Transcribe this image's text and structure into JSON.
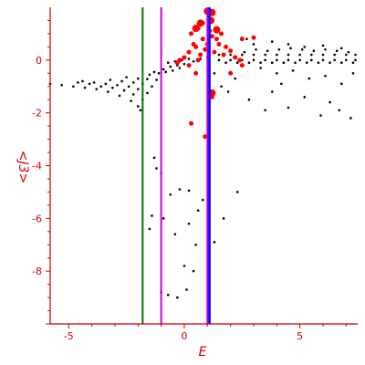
{
  "chart_data": {
    "type": "scatter",
    "title": "",
    "xlabel": "E",
    "ylabel": "<J3>",
    "xlim": [
      -5.8,
      7.5
    ],
    "ylim": [
      -10.0,
      2.0
    ],
    "x_ticks": [
      -5,
      0,
      5
    ],
    "y_ticks": [
      0,
      -2,
      -4,
      -6,
      -8
    ],
    "grid": false,
    "legend": "none",
    "colors": {
      "axes": "#cc0000",
      "black_points": "#000000",
      "red_points": "#ff0000",
      "line_green": "#007700",
      "line_magenta": "#cc00cc",
      "line_purple": "#7700ff",
      "line_blue": "#0000ff"
    },
    "vertical_lines": [
      {
        "x": -1.8,
        "color": "#007700"
      },
      {
        "x": -1.0,
        "color": "#cc00cc"
      },
      {
        "x": 1.0,
        "color": "#cc00cc"
      },
      {
        "x": 1.05,
        "color": "#7700ff"
      },
      {
        "x": 1.1,
        "color": "#0000ff"
      }
    ],
    "series": [
      {
        "color": "#000000",
        "marker_size": 1.3,
        "points": [
          [
            -5.8,
            -0.9
          ],
          [
            -5.3,
            -0.95
          ],
          [
            -4.8,
            -1.0
          ],
          [
            -4.3,
            -1.05
          ],
          [
            -3.8,
            -1.1
          ],
          [
            -3.3,
            -1.2
          ],
          [
            -2.8,
            -1.35
          ],
          [
            -2.3,
            -1.55
          ],
          [
            -2.0,
            -1.75
          ],
          [
            -1.9,
            -1.9
          ],
          [
            -4.6,
            -0.85
          ],
          [
            -4.1,
            -0.9
          ],
          [
            -3.6,
            -1.0
          ],
          [
            -3.1,
            -1.05
          ],
          [
            -2.6,
            -1.15
          ],
          [
            -2.2,
            -1.3
          ],
          [
            -1.8,
            -1.5
          ],
          [
            -4.4,
            -0.8
          ],
          [
            -3.9,
            -0.85
          ],
          [
            -3.4,
            -0.9
          ],
          [
            -2.9,
            -0.95
          ],
          [
            -2.4,
            -1.0
          ],
          [
            -2.0,
            -1.1
          ],
          [
            -1.6,
            -1.25
          ],
          [
            -3.2,
            -0.75
          ],
          [
            -2.7,
            -0.8
          ],
          [
            -2.2,
            -0.85
          ],
          [
            -1.8,
            -0.9
          ],
          [
            -1.4,
            -1.0
          ],
          [
            -2.5,
            -0.65
          ],
          [
            -2.0,
            -0.7
          ],
          [
            -1.6,
            -0.72
          ],
          [
            -1.2,
            -0.75
          ],
          [
            -1.5,
            -0.55
          ],
          [
            -1.1,
            -0.5
          ],
          [
            -0.8,
            -0.45
          ],
          [
            -0.5,
            -0.4
          ],
          [
            -0.2,
            -0.3
          ],
          [
            -1.3,
            -0.45
          ],
          [
            -0.9,
            -0.35
          ],
          [
            -0.6,
            -0.25
          ],
          [
            -0.3,
            -0.2
          ],
          [
            0.0,
            -0.15
          ],
          [
            -0.7,
            -0.1
          ],
          [
            -0.4,
            -0.05
          ],
          [
            -0.1,
            0.0
          ],
          [
            0.2,
            0.05
          ],
          [
            0.4,
            -0.05
          ],
          [
            0.7,
            0.05
          ],
          [
            1.0,
            0.1
          ],
          [
            1.5,
            0.0
          ],
          [
            2.0,
            0.0
          ],
          [
            2.5,
            0.0
          ],
          [
            3.0,
            0.0
          ],
          [
            3.5,
            0.0
          ],
          [
            4.0,
            0.0
          ],
          [
            4.5,
            0.0
          ],
          [
            5.0,
            0.0
          ],
          [
            5.5,
            0.0
          ],
          [
            6.0,
            0.0
          ],
          [
            6.5,
            0.0
          ],
          [
            7.0,
            0.0
          ],
          [
            7.4,
            0.0
          ],
          [
            1.5,
            0.2
          ],
          [
            2.0,
            0.2
          ],
          [
            2.5,
            0.2
          ],
          [
            3.0,
            0.2
          ],
          [
            3.5,
            0.2
          ],
          [
            4.0,
            0.2
          ],
          [
            4.5,
            0.2
          ],
          [
            5.0,
            0.2
          ],
          [
            5.5,
            0.2
          ],
          [
            6.0,
            0.2
          ],
          [
            6.5,
            0.2
          ],
          [
            7.0,
            0.2
          ],
          [
            7.4,
            0.2
          ],
          [
            1.8,
            -0.1
          ],
          [
            2.3,
            -0.1
          ],
          [
            2.8,
            -0.1
          ],
          [
            3.3,
            -0.1
          ],
          [
            3.8,
            -0.1
          ],
          [
            4.3,
            -0.1
          ],
          [
            4.8,
            -0.1
          ],
          [
            5.3,
            -0.1
          ],
          [
            5.8,
            -0.1
          ],
          [
            6.3,
            -0.1
          ],
          [
            6.8,
            -0.1
          ],
          [
            7.3,
            -0.1
          ],
          [
            2.6,
            0.3
          ],
          [
            3.1,
            0.4
          ],
          [
            3.6,
            0.35
          ],
          [
            4.1,
            0.4
          ],
          [
            4.6,
            0.45
          ],
          [
            5.1,
            0.4
          ],
          [
            5.6,
            0.35
          ],
          [
            6.1,
            0.4
          ],
          [
            6.6,
            0.35
          ],
          [
            7.1,
            0.3
          ],
          [
            2.7,
            0.8
          ],
          [
            3.0,
            0.6
          ],
          [
            3.8,
            0.7
          ],
          [
            4.5,
            0.6
          ],
          [
            5.2,
            0.5
          ],
          [
            6.0,
            0.55
          ],
          [
            6.8,
            0.45
          ],
          [
            3.3,
            -0.3
          ],
          [
            4.0,
            -0.5
          ],
          [
            4.7,
            -0.4
          ],
          [
            5.4,
            -0.7
          ],
          [
            6.1,
            -0.6
          ],
          [
            6.8,
            -0.9
          ],
          [
            7.3,
            -0.5
          ],
          [
            2.8,
            -1.5
          ],
          [
            3.8,
            -1.2
          ],
          [
            4.5,
            -1.8
          ],
          [
            5.2,
            -1.4
          ],
          [
            5.9,
            -2.1
          ],
          [
            6.7,
            -1.9
          ],
          [
            7.2,
            -2.2
          ],
          [
            3.5,
            -1.9
          ],
          [
            6.3,
            -1.6
          ],
          [
            4.2,
            -0.9
          ],
          [
            1.6,
            -1.0
          ],
          [
            2.2,
            -0.7
          ],
          [
            1.3,
            -0.5
          ],
          [
            1.9,
            -1.2
          ],
          [
            -1.3,
            -3.7
          ],
          [
            -1.2,
            -4.1
          ],
          [
            -1.0,
            -4.3
          ],
          [
            -0.6,
            -5.1
          ],
          [
            -0.2,
            -4.9
          ],
          [
            0.2,
            -4.95
          ],
          [
            0.8,
            -5.3
          ],
          [
            -1.5,
            -6.4
          ],
          [
            -1.4,
            -5.9
          ],
          [
            -0.9,
            -6.0
          ],
          [
            -1.0,
            -8.8
          ],
          [
            -0.7,
            -8.9
          ],
          [
            -0.3,
            -9.0
          ],
          [
            0.1,
            -8.7
          ],
          [
            0.0,
            -7.8
          ],
          [
            0.4,
            -8.0
          ],
          [
            0.2,
            -6.2
          ],
          [
            0.5,
            -7.0
          ],
          [
            1.3,
            -6.9
          ],
          [
            2.3,
            -5.0
          ],
          [
            1.7,
            -6.0
          ],
          [
            0.6,
            -5.7
          ],
          [
            -0.4,
            -6.6
          ]
        ]
      },
      {
        "color": "#ff0000",
        "marker_size": 2.5,
        "points": [
          [
            0.3,
            1.0
          ],
          [
            0.6,
            1.2
          ],
          [
            0.8,
            0.8
          ],
          [
            1.2,
            0.9
          ],
          [
            1.5,
            0.6
          ],
          [
            0.5,
            0.5
          ],
          [
            0.9,
            0.4
          ],
          [
            1.3,
            0.3
          ],
          [
            1.7,
            0.2
          ],
          [
            2.0,
            0.35
          ],
          [
            0.2,
            0.3
          ],
          [
            0.0,
            0.1
          ],
          [
            -0.2,
            0.0
          ],
          [
            0.6,
            0.0
          ],
          [
            1.0,
            0.6
          ],
          [
            1.4,
            0.8
          ],
          [
            1.8,
            0.5
          ],
          [
            0.4,
            0.6
          ],
          [
            2.2,
            0.1
          ],
          [
            0.7,
            0.2
          ],
          [
            2.5,
            0.8
          ],
          [
            3.0,
            0.85
          ],
          [
            2.4,
            0.0
          ],
          [
            1.6,
            1.0
          ],
          [
            0.2,
            -0.2
          ],
          [
            0.5,
            -0.5
          ],
          [
            0.3,
            -2.4
          ],
          [
            0.9,
            -2.9
          ],
          [
            1.2,
            -1.4
          ],
          [
            2.0,
            -0.5
          ],
          [
            2.5,
            -0.2
          ],
          [
            -0.3,
            -0.1
          ],
          [
            1.1,
            1.1
          ],
          [
            0.8,
            1.4
          ]
        ]
      },
      {
        "color": "#ff0000",
        "marker_size": 4.0,
        "points": [
          [
            1.0,
            1.85
          ],
          [
            1.2,
            1.8
          ],
          [
            1.15,
            1.5
          ],
          [
            0.7,
            1.4
          ],
          [
            1.4,
            1.15
          ],
          [
            1.2,
            -1.25
          ],
          [
            0.5,
            1.2
          ]
        ]
      }
    ]
  }
}
